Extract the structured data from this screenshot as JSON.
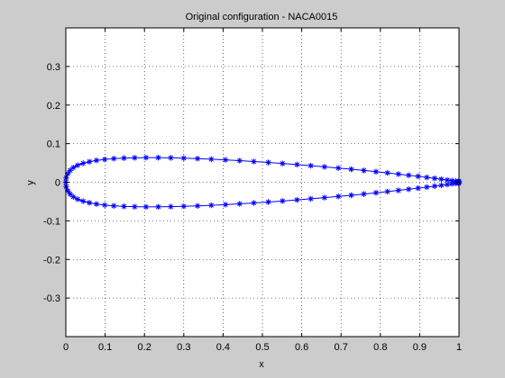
{
  "chart_data": {
    "type": "scatter",
    "title": "Original configuration - NACA0015",
    "xlabel": "x",
    "ylabel": "y",
    "xlim": [
      0,
      1
    ],
    "ylim": [
      -0.4,
      0.4
    ],
    "x_ticks": [
      0,
      0.1,
      0.2,
      0.3,
      0.4,
      0.5,
      0.6,
      0.7,
      0.8,
      0.9,
      1
    ],
    "x_tick_labels": [
      "0",
      "0.1",
      "0.2",
      "0.3",
      "0.4",
      "0.5",
      "0.6",
      "0.7",
      "0.8",
      "0.9",
      "1"
    ],
    "y_ticks": [
      -0.3,
      -0.2,
      -0.1,
      0,
      0.1,
      0.2,
      0.3
    ],
    "y_tick_labels": [
      "-0.3",
      "-0.2",
      "-0.1",
      "0",
      "0.1",
      "0.2",
      "0.3"
    ],
    "grid": true,
    "grid_style": "dotted",
    "marker": "*",
    "line": true,
    "series": [
      {
        "color": "#0000ff",
        "x": [
          1.0,
          0.998,
          0.992,
          0.982,
          0.97,
          0.955,
          0.938,
          0.918,
          0.896,
          0.872,
          0.846,
          0.818,
          0.789,
          0.758,
          0.726,
          0.693,
          0.658,
          0.623,
          0.588,
          0.551,
          0.515,
          0.478,
          0.442,
          0.406,
          0.37,
          0.335,
          0.3,
          0.267,
          0.235,
          0.204,
          0.175,
          0.148,
          0.122,
          0.099,
          0.078,
          0.06,
          0.044,
          0.03,
          0.019,
          0.011,
          0.005,
          0.001,
          0.0,
          0.001,
          0.005,
          0.011,
          0.019,
          0.03,
          0.044,
          0.06,
          0.078,
          0.099,
          0.122,
          0.148,
          0.175,
          0.204,
          0.235,
          0.267,
          0.3,
          0.335,
          0.37,
          0.406,
          0.442,
          0.478,
          0.515,
          0.551,
          0.588,
          0.623,
          0.658,
          0.693,
          0.726,
          0.758,
          0.789,
          0.818,
          0.846,
          0.872,
          0.896,
          0.918,
          0.938,
          0.955,
          0.97,
          0.982,
          0.992,
          0.998,
          1.0
        ],
        "y": [
          0.0016,
          0.0019,
          0.0027,
          0.0041,
          0.0058,
          0.0078,
          0.0101,
          0.0126,
          0.0153,
          0.0181,
          0.0211,
          0.0242,
          0.0273,
          0.0305,
          0.0337,
          0.0368,
          0.0399,
          0.0429,
          0.0458,
          0.0486,
          0.0512,
          0.0537,
          0.0559,
          0.058,
          0.0597,
          0.0612,
          0.0624,
          0.0632,
          0.0637,
          0.0638,
          0.0634,
          0.0626,
          0.0612,
          0.0592,
          0.0566,
          0.0532,
          0.049,
          0.044,
          0.0379,
          0.0307,
          0.0221,
          0.011,
          0.0,
          -0.011,
          -0.0221,
          -0.0307,
          -0.0379,
          -0.044,
          -0.049,
          -0.0532,
          -0.0566,
          -0.0592,
          -0.0612,
          -0.0626,
          -0.0634,
          -0.0638,
          -0.0637,
          -0.0632,
          -0.0624,
          -0.0612,
          -0.0597,
          -0.058,
          -0.0559,
          -0.0537,
          -0.0512,
          -0.0486,
          -0.0458,
          -0.0429,
          -0.0399,
          -0.0368,
          -0.0337,
          -0.0305,
          -0.0273,
          -0.0242,
          -0.0211,
          -0.0181,
          -0.0153,
          -0.0126,
          -0.0101,
          -0.0078,
          -0.0058,
          -0.0041,
          -0.0027,
          -0.0019,
          -0.0016
        ]
      }
    ]
  }
}
